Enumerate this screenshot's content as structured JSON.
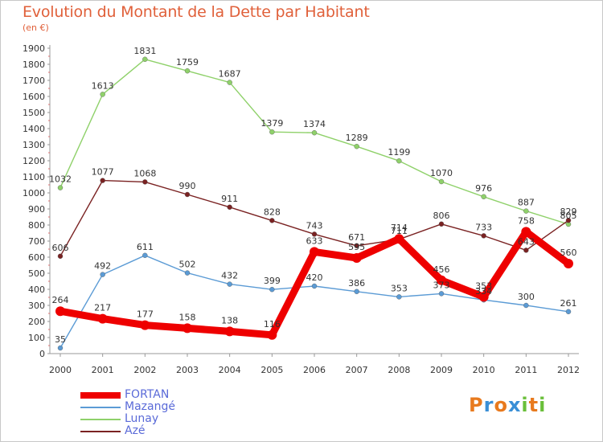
{
  "title": "Evolution du Montant de la Dette par Habitant",
  "subtitle": "(en €)",
  "logo": {
    "text": "Proxiti",
    "letters": [
      "P",
      "r",
      "o",
      "x",
      "i",
      "t",
      "i"
    ],
    "colors": [
      "#e87a1e",
      "#3a8fd6",
      "#e87a1e",
      "#3a8fd6",
      "#6abf3a",
      "#e87a1e",
      "#6abf3a"
    ]
  },
  "chart_data": {
    "type": "line",
    "title": "Evolution du Montant de la Dette par Habitant",
    "ylabel": "(en €)",
    "x": [
      "2000",
      "2001",
      "2002",
      "2003",
      "2004",
      "2005",
      "2006",
      "2007",
      "2008",
      "2009",
      "2010",
      "2011",
      "2012"
    ],
    "ylim": [
      0,
      1900
    ],
    "yticks": [
      0,
      100,
      200,
      300,
      400,
      500,
      600,
      700,
      800,
      900,
      1000,
      1100,
      1200,
      1300,
      1400,
      1500,
      1600,
      1700,
      1800,
      1900
    ],
    "grid": false,
    "legend": "bottom-left",
    "series": [
      {
        "name": "FORTAN",
        "color": "#ee0000",
        "emphasis": true,
        "values": [
          264,
          217,
          177,
          158,
          138,
          116,
          633,
          595,
          714,
          456,
          353,
          758,
          560
        ]
      },
      {
        "name": "Mazangé",
        "color": "#5b9bd5",
        "emphasis": false,
        "values": [
          35,
          492,
          611,
          502,
          432,
          399,
          420,
          386,
          353,
          373,
          334,
          300,
          261
        ]
      },
      {
        "name": "Lunay",
        "color": "#8fd16a",
        "emphasis": false,
        "values": [
          1032,
          1613,
          1831,
          1759,
          1687,
          1379,
          1374,
          1289,
          1199,
          1070,
          976,
          887,
          805
        ]
      },
      {
        "name": "Azé",
        "color": "#7a2222",
        "emphasis": false,
        "values": [
          606,
          1077,
          1068,
          990,
          911,
          828,
          743,
          671,
          711,
          806,
          733,
          643,
          829
        ]
      }
    ]
  }
}
